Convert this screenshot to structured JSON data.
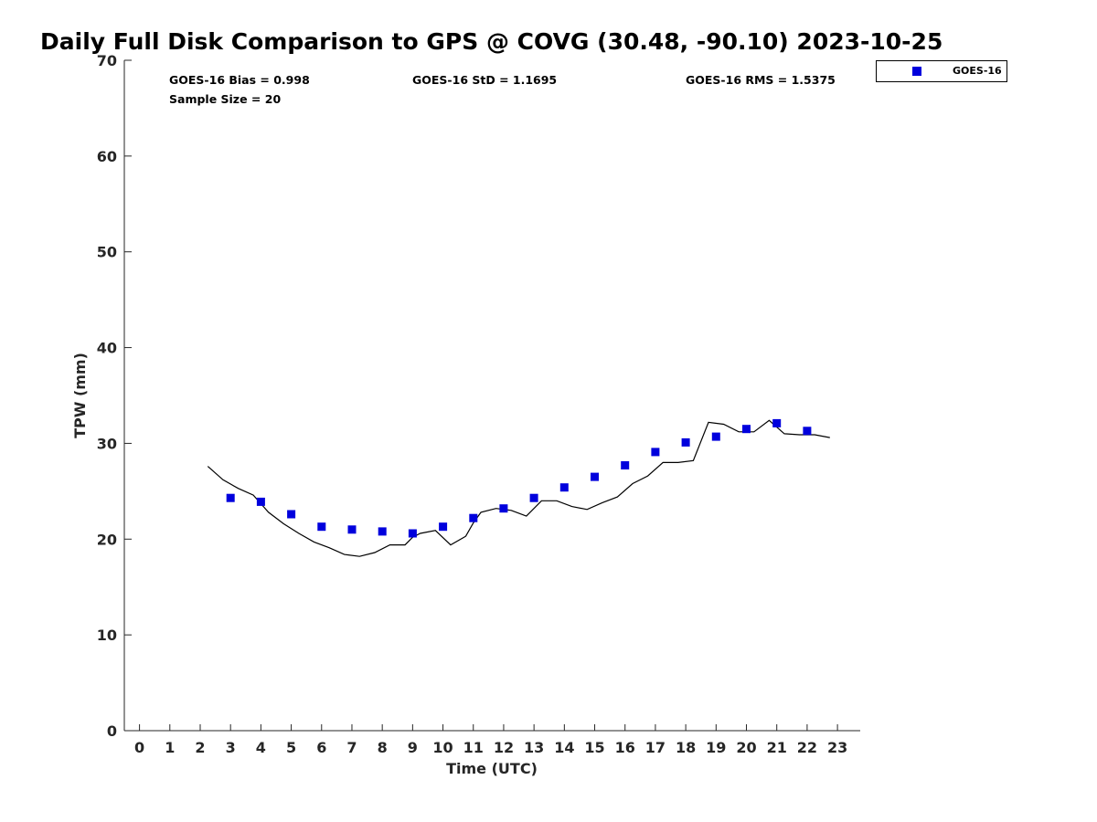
{
  "chart_data": {
    "type": "scatter",
    "title": "Daily Full Disk Comparison to GPS @ COVG (30.48, -90.10) 2023-10-25",
    "xlabel": "Time (UTC)",
    "ylabel": "TPW (mm)",
    "xlim": [
      -0.5,
      23.75
    ],
    "ylim": [
      0,
      70
    ],
    "x_ticks": [
      0,
      1,
      2,
      3,
      4,
      5,
      6,
      7,
      8,
      9,
      10,
      11,
      12,
      13,
      14,
      15,
      16,
      17,
      18,
      19,
      20,
      21,
      22,
      23
    ],
    "y_ticks": [
      0,
      10,
      20,
      30,
      40,
      50,
      60,
      70
    ],
    "grid": false,
    "legend_position": "top-right-outside",
    "stats": {
      "bias": "GOES-16 Bias = 0.998",
      "std": "GOES-16 StD = 1.1695",
      "rms": "GOES-16 RMS = 1.5375",
      "sample_size": "Sample Size = 20"
    },
    "series": [
      {
        "name": "GOES-16",
        "marker": "square",
        "color": "#0000dd",
        "x": [
          3,
          4,
          5,
          6,
          7,
          8,
          9,
          10,
          11,
          12,
          13,
          14,
          15,
          16,
          17,
          18,
          19,
          20,
          21,
          22
        ],
        "y": [
          24.3,
          23.9,
          22.6,
          21.3,
          21.0,
          20.8,
          20.6,
          21.3,
          22.2,
          23.2,
          24.3,
          25.4,
          26.5,
          27.7,
          29.1,
          30.1,
          30.7,
          31.5,
          32.1,
          31.3
        ]
      },
      {
        "marker": "line",
        "color": "#000000",
        "x": [
          2.25,
          2.75,
          3.25,
          3.75,
          4.0,
          4.25,
          4.75,
          5.25,
          5.75,
          6.25,
          6.75,
          7.25,
          7.75,
          8.25,
          8.75,
          9.0,
          9.25,
          9.75,
          10.25,
          10.75,
          11.0,
          11.25,
          11.75,
          12.25,
          12.75,
          13.25,
          13.75,
          14.25,
          14.75,
          15.25,
          15.75,
          16.25,
          16.75,
          17.25,
          17.75,
          18.25,
          18.75,
          19.25,
          19.75,
          20.25,
          20.75,
          21.25,
          21.75,
          22.25,
          22.75
        ],
        "y": [
          27.6,
          26.2,
          25.3,
          24.6,
          23.7,
          22.8,
          21.6,
          20.6,
          19.7,
          19.1,
          18.4,
          18.2,
          18.6,
          19.4,
          19.4,
          20.2,
          20.6,
          20.9,
          19.4,
          20.3,
          21.7,
          22.8,
          23.2,
          23.0,
          22.4,
          24.0,
          24.0,
          23.4,
          23.1,
          23.8,
          24.4,
          25.8,
          26.6,
          28.0,
          28.0,
          28.2,
          32.2,
          32.0,
          31.2,
          31.2,
          32.4,
          31.0,
          30.9,
          30.9,
          30.6
        ]
      }
    ]
  }
}
